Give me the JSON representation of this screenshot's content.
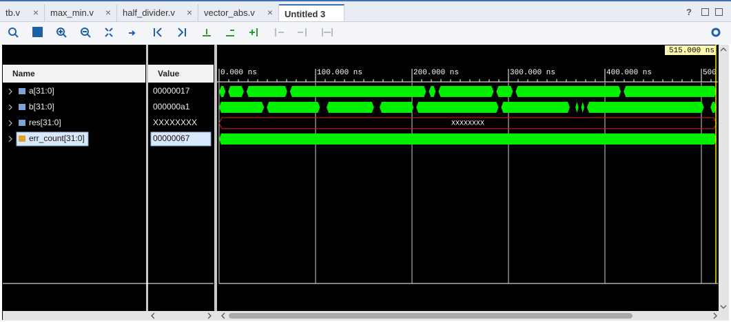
{
  "tabs": [
    "tb.v",
    "max_min.v",
    "half_divider.v",
    "vector_abs.v",
    "Untitled 3"
  ],
  "help": "?",
  "columns": {
    "name": "Name",
    "value": "Value"
  },
  "signals": [
    {
      "name": "a[31:0]",
      "value": "00000017"
    },
    {
      "name": "b[31:0]",
      "value": "000000a1"
    },
    {
      "name": "res[31:0]",
      "value": "XXXXXXXX",
      "wave_label": "XXXXXXXX"
    },
    {
      "name": "err_count[31:0]",
      "value": "00000067"
    }
  ],
  "ruler": [
    {
      "value": 0,
      "label": "0.000 ns"
    },
    {
      "value": 100,
      "label": "100.000 ns"
    },
    {
      "value": 200,
      "label": "200.000 ns"
    },
    {
      "value": 300,
      "label": "300.000 ns"
    },
    {
      "value": 400,
      "label": "400.000 ns"
    },
    {
      "value": 500,
      "label": "500"
    }
  ],
  "cursor": {
    "value": 515,
    "label": "515.000 ns"
  }
}
